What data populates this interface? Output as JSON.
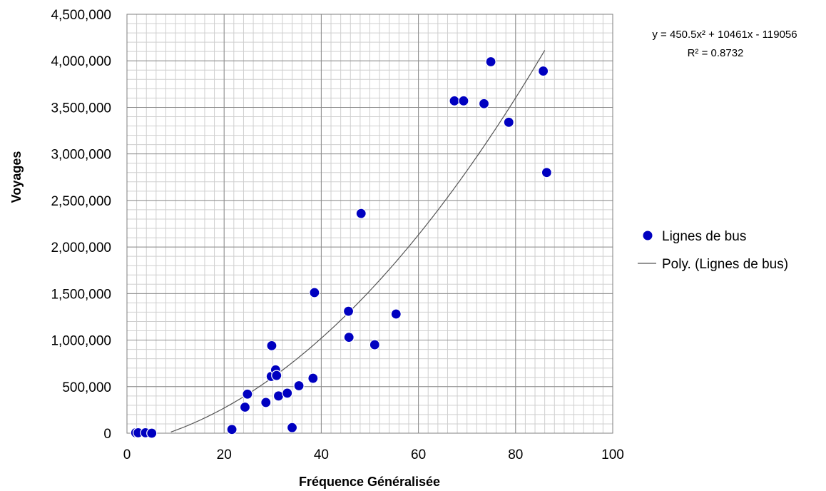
{
  "chart_data": {
    "type": "scatter",
    "xlabel": "Fréquence Généralisée",
    "ylabel": "Voyages",
    "xlim": [
      0,
      100
    ],
    "ylim": [
      0,
      4500000
    ],
    "x_ticks": [
      0,
      20,
      40,
      60,
      80,
      100
    ],
    "y_ticks": [
      0,
      500000,
      1000000,
      1500000,
      2000000,
      2500000,
      3000000,
      3500000,
      4000000,
      4500000
    ],
    "x_tick_labels": [
      "0",
      "20",
      "40",
      "60",
      "80",
      "100"
    ],
    "y_tick_labels": [
      "0",
      "500,000",
      "1,000,000",
      "1,500,000",
      "2,000,000",
      "2,500,000",
      "3,000,000",
      "3,500,000",
      "4,000,000",
      "4,500,000"
    ],
    "grid": "major and minor",
    "legend_position": "right",
    "series": [
      {
        "name": "Lignes de bus",
        "kind": "scatter",
        "color": "#0000c0",
        "x": [
          1.8,
          2.3,
          3.8,
          5.1,
          21.6,
          24.3,
          24.8,
          28.6,
          29.7,
          29.8,
          30.6,
          30.8,
          31.2,
          33.0,
          34.0,
          35.4,
          38.3,
          38.6,
          45.6,
          45.7,
          48.2,
          51.0,
          55.4,
          67.4,
          69.3,
          73.5,
          74.9,
          78.6,
          85.7,
          86.4
        ],
        "y": [
          5000,
          5000,
          5000,
          0,
          40000,
          280000,
          420000,
          330000,
          610000,
          940000,
          680000,
          620000,
          400000,
          430000,
          60000,
          510000,
          590000,
          1510000,
          1310000,
          1030000,
          2360000,
          950000,
          1280000,
          3570000,
          3570000,
          3540000,
          3990000,
          3340000,
          3890000,
          2800000
        ]
      },
      {
        "name": "Poly. (Lignes de bus)",
        "kind": "trendline",
        "color": "#555555",
        "x_range": [
          9.05,
          86
        ]
      }
    ],
    "trendline": {
      "equation": "y = 450.5x² + 10461x - 119056",
      "r_squared": "R² = 0.8732",
      "coefficients": [
        450.5,
        10461,
        -119056
      ]
    }
  }
}
